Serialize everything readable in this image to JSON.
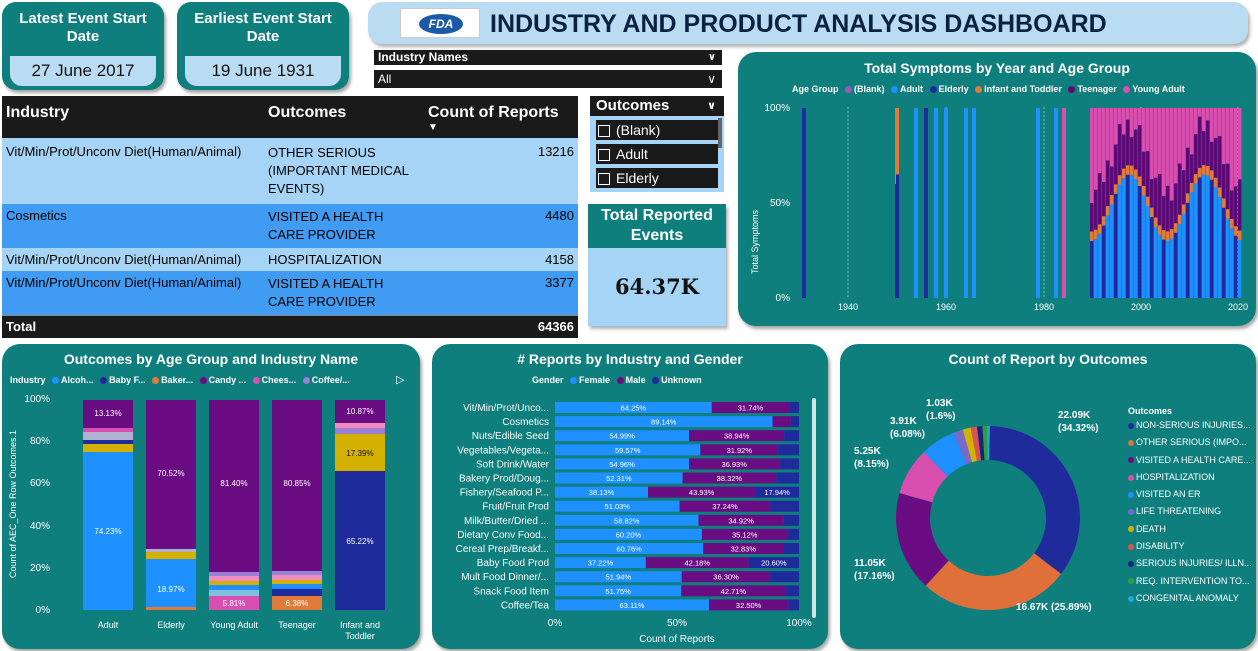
{
  "colors": {
    "teal": "#0e7f7d",
    "female": "#1e90ff",
    "male": "#6a0d83",
    "unknown": "#1f2b9a",
    "adult": "#1e90ff",
    "blank": "#9b59b6",
    "elderly": "#1f2b9a",
    "infant": "#e07b39",
    "teenager": "#5c0a75",
    "young_adult": "#d94fb0"
  },
  "kpi_latest": {
    "title": "Latest Event Start Date",
    "value": "27 June 2017"
  },
  "kpi_earliest": {
    "title": "Earliest Event Start Date",
    "value": "19 June 1931"
  },
  "header": {
    "logo_text": "FDA",
    "title": "INDUSTRY AND PRODUCT ANALYSIS DASHBOARD"
  },
  "industry_filter": {
    "label": "Industry Names",
    "value": "All"
  },
  "outcomes_slicer": {
    "title": "Outcomes",
    "items": [
      "(Blank)",
      "Adult",
      "Elderly"
    ]
  },
  "total_reported": {
    "title": "Total Reported Events",
    "value": "64.37K"
  },
  "table": {
    "headers": [
      "Industry",
      "Outcomes",
      "Count of Reports"
    ],
    "rows": [
      [
        "Vit/Min/Prot/Unconv Diet(Human/Animal)",
        "OTHER SERIOUS (IMPORTANT MEDICAL EVENTS)",
        "13216"
      ],
      [
        "Cosmetics",
        "VISITED A HEALTH CARE PROVIDER",
        "4480"
      ],
      [
        "Vit/Min/Prot/Unconv Diet(Human/Animal)",
        "HOSPITALIZATION",
        "4158"
      ],
      [
        "Vit/Min/Prot/Unconv Diet(Human/Animal)",
        "VISITED A HEALTH CARE PROVIDER",
        "3377"
      ]
    ],
    "total_label": "Total",
    "total_value": "64366"
  },
  "symptoms_chart": {
    "title": "Total Symptoms by Year and Age Group",
    "legend_title": "Age Group",
    "legend": [
      "(Blank)",
      "Adult",
      "Elderly",
      "Infant and Toddler",
      "Teenager",
      "Young Adult"
    ],
    "ylabel": "Total Symptoms",
    "yticks": [
      "100%",
      "50%",
      "0%"
    ],
    "xticks": [
      "1940",
      "1960",
      "1980",
      "2000",
      "2020"
    ]
  },
  "age_industry_chart": {
    "title": "Outcomes by Age Group and Industry Name",
    "legend_title": "Industry",
    "legend": [
      "Alcoh...",
      "Baby F...",
      "Baker...",
      "Candy ...",
      "Chees...",
      "Coffee/..."
    ],
    "ylabel": "Count of AEC_One Row Outcomes.1",
    "yticks": [
      "100%",
      "80%",
      "60%",
      "40%",
      "20%",
      "0%"
    ],
    "categories": [
      "Adult",
      "Elderly",
      "Young Adult",
      "Teenager",
      "Infant and Toddler"
    ],
    "labels": {
      "adult_top": "13.13%",
      "adult_main": "74.23%",
      "elderly_top": "70.52%",
      "elderly_main": "18.97%",
      "ya_top": "81.40%",
      "ya_bottom": "5.81%",
      "teen_top": "80.85%",
      "teen_bottom": "6.38%",
      "infant_top": "10.87%",
      "infant_mid": "17.39%",
      "infant_main": "65.22%"
    }
  },
  "gender_chart": {
    "title": "# Reports by Industry and Gender",
    "legend_title": "Gender",
    "legend": [
      "Female",
      "Male",
      "Unknown"
    ],
    "xlabel": "Count of Reports",
    "xticks": [
      "0%",
      "50%",
      "100%"
    ]
  },
  "chart_data": [
    {
      "type": "bar",
      "title": "# Reports by Industry and Gender",
      "xlabel": "Count of Reports",
      "categories": [
        "Vit/Min/Prot/Unco...",
        "Cosmetics",
        "Nuts/Edible Seed",
        "Vegetables/Vegeta...",
        "Soft Drink/Water",
        "Bakery Prod/Doug...",
        "Fishery/Seafood P...",
        "Fruit/Fruit Prod",
        "Milk/Butter/Dried ...",
        "Dietary Conv Food...",
        "Cereal Prep/Breakf...",
        "Baby Food Prod",
        "Mult Food Dinner/...",
        "Snack Food Item",
        "Coffee/Tea"
      ],
      "series": [
        {
          "name": "Female",
          "values": [
            64.25,
            89.14,
            54.99,
            59.57,
            54.96,
            52.31,
            38.13,
            51.03,
            58.82,
            60.2,
            60.76,
            37.22,
            51.94,
            51.75,
            63.11
          ]
        },
        {
          "name": "Male",
          "values": [
            31.74,
            7.5,
            38.94,
            31.92,
            36.93,
            38.32,
            43.93,
            37.24,
            34.92,
            35.12,
            32.83,
            42.18,
            36.3,
            42.71,
            32.5
          ]
        },
        {
          "name": "Unknown",
          "values": [
            4.01,
            3.36,
            6.07,
            8.51,
            8.11,
            9.37,
            17.94,
            11.73,
            6.26,
            4.68,
            6.41,
            20.6,
            11.76,
            5.54,
            4.39
          ]
        }
      ],
      "labels": [
        [
          "64.25%",
          "31.74%",
          ""
        ],
        [
          "89.14%",
          "",
          ""
        ],
        [
          "54.99%",
          "38.94%",
          ""
        ],
        [
          "59.57%",
          "31.92%",
          ""
        ],
        [
          "54.96%",
          "36.93%",
          ""
        ],
        [
          "52.31%",
          "38.32%",
          ""
        ],
        [
          "38.13%",
          "43.93%",
          "17.94%"
        ],
        [
          "51.03%",
          "37.24%",
          ""
        ],
        [
          "58.82%",
          "34.92%",
          ""
        ],
        [
          "60.20%",
          "35.12%",
          ""
        ],
        [
          "60.76%",
          "32.83%",
          ""
        ],
        [
          "37.22%",
          "42.18%",
          "20.60%"
        ],
        [
          "51.94%",
          "36.30%",
          ""
        ],
        [
          "51.75%",
          "42.71%",
          ""
        ],
        [
          "63.11%",
          "32.50%",
          ""
        ]
      ]
    },
    {
      "type": "pie",
      "title": "Count of Report by Outcomes",
      "legend_title": "Outcomes",
      "categories": [
        "NON-SERIOUS INJURIES...",
        "OTHER SERIOUS (IMPO...",
        "VISITED A HEALTH CARE...",
        "HOSPITALIZATION",
        "VISITED AN ER",
        "LIFE THREATENING",
        "DEATH",
        "DISABILITY",
        "SERIOUS INJURIES/ ILLN...",
        "REQ. INTERVENTION TO...",
        "CONGENITAL ANOMALY"
      ],
      "values": [
        22.09,
        16.67,
        11.05,
        5.25,
        3.91,
        1.03,
        0.9,
        0.7,
        0.6,
        0.5,
        0.3
      ],
      "colors": [
        "#1f2b9a",
        "#e0703a",
        "#6a0d83",
        "#d94fb0",
        "#1e90ff",
        "#7b68c8",
        "#d4b000",
        "#d9534f",
        "#1a237e",
        "#2e9e3e",
        "#20a8d8"
      ],
      "data_labels": [
        {
          "text": "22.09K",
          "sub": "(34.32%)"
        },
        {
          "text": "16.67K (25.89%)",
          "sub": ""
        },
        {
          "text": "11.05K",
          "sub": "(17.16%)"
        },
        {
          "text": "5.25K",
          "sub": "(8.15%)"
        },
        {
          "text": "3.91K",
          "sub": "(6.08%)"
        },
        {
          "text": "1.03K",
          "sub": "(1.6%)"
        }
      ]
    }
  ]
}
